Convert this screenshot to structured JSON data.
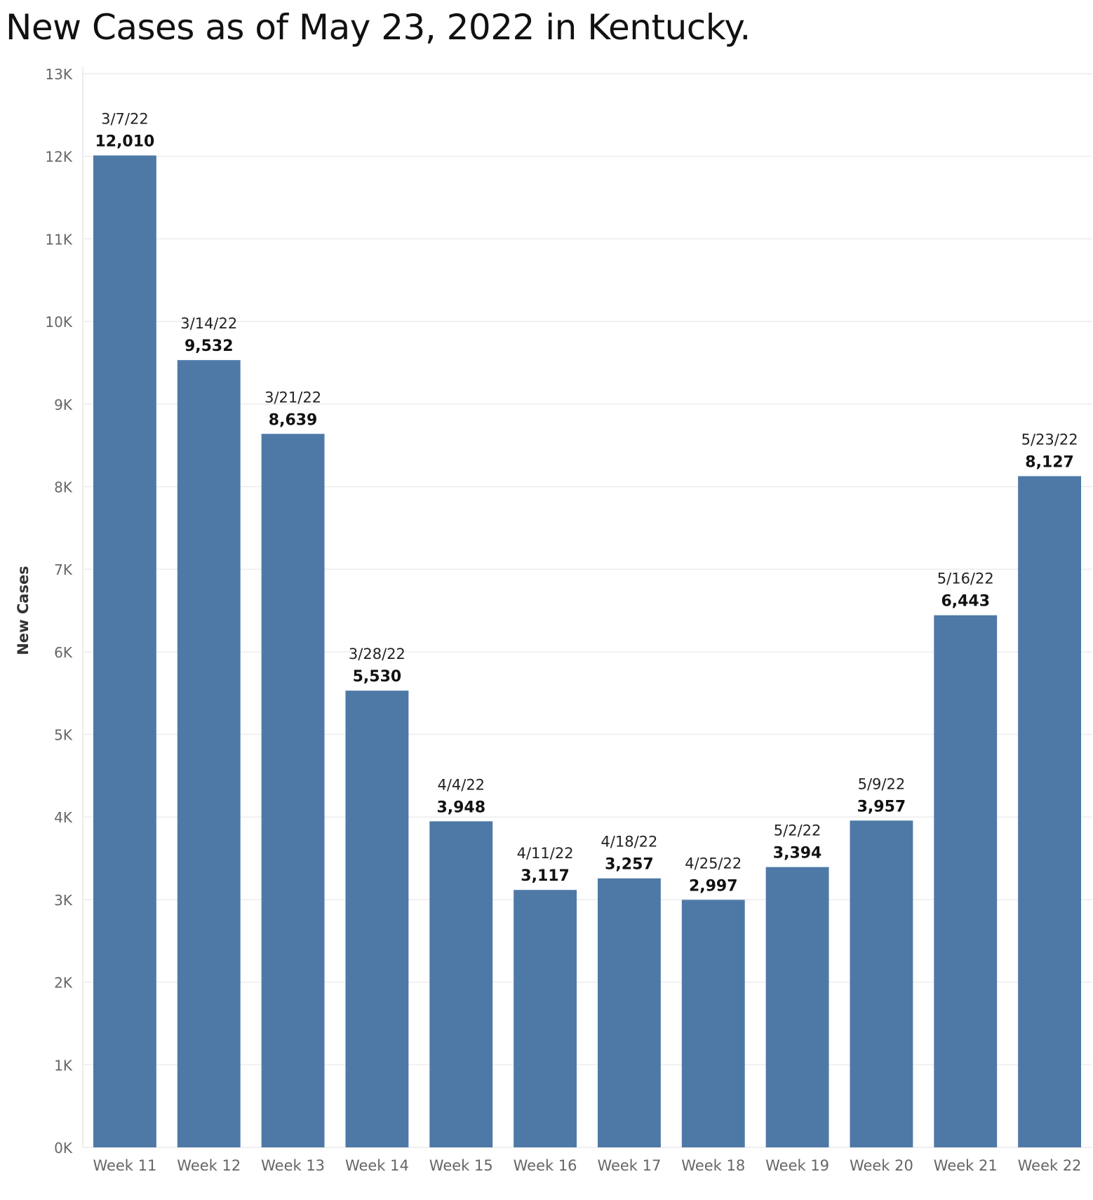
{
  "chart_data": {
    "type": "bar",
    "title": "New Cases as of May 23, 2022 in Kentucky.",
    "ylabel": "New Cases",
    "xlabel": "",
    "ylim": [
      0,
      13000
    ],
    "y_ticks": [
      "0K",
      "1K",
      "2K",
      "3K",
      "4K",
      "5K",
      "6K",
      "7K",
      "8K",
      "9K",
      "10K",
      "11K",
      "12K",
      "13K"
    ],
    "grid": true,
    "bar_color": "#4e79a7",
    "categories": [
      "Week 11",
      "Week 12",
      "Week 13",
      "Week 14",
      "Week 15",
      "Week 16",
      "Week 17",
      "Week 18",
      "Week 19",
      "Week 20",
      "Week 21",
      "Week 22"
    ],
    "dates": [
      "3/7/22",
      "3/14/22",
      "3/21/22",
      "3/28/22",
      "4/4/22",
      "4/11/22",
      "4/18/22",
      "4/25/22",
      "5/2/22",
      "5/9/22",
      "5/16/22",
      "5/23/22"
    ],
    "values": [
      12010,
      9532,
      8639,
      5530,
      3948,
      3117,
      3257,
      2997,
      3394,
      3957,
      6443,
      8127
    ],
    "value_labels": [
      "12,010",
      "9,532",
      "8,639",
      "5,530",
      "3,948",
      "3,117",
      "3,257",
      "2,997",
      "3,394",
      "3,957",
      "6,443",
      "8,127"
    ]
  }
}
